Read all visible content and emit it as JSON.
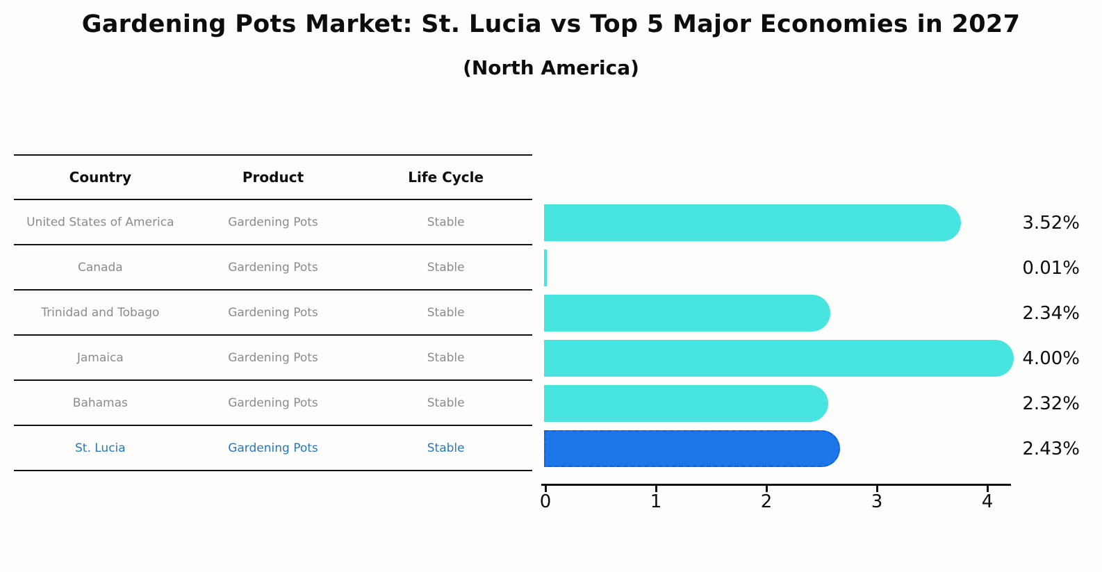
{
  "chart_data": {
    "type": "bar",
    "orientation": "horizontal",
    "title": "Gardening Pots Market: St. Lucia vs Top 5 Major Economies in 2027",
    "subtitle": "(North America)",
    "categories": [
      "United States of America",
      "Canada",
      "Trinidad and Tobago",
      "Jamaica",
      "Bahamas",
      "St. Lucia"
    ],
    "values": [
      3.52,
      0.01,
      2.34,
      4.0,
      2.32,
      2.43
    ],
    "labels": [
      "3.52%",
      "0.01%",
      "2.34%",
      "4.00%",
      "2.32%",
      "2.43%"
    ],
    "unit": "%",
    "xlim": [
      0,
      4.25
    ],
    "xticks": [
      "0",
      "1",
      "2",
      "3",
      "4"
    ],
    "grid": false,
    "legend": false,
    "bar_color": "#48E5E0",
    "highlight_color": "#1C76E8",
    "highlight_border_color": "#1261D6",
    "highlight_index": 5,
    "highlight_category": "St. Lucia"
  },
  "table": {
    "headers": [
      "Country",
      "Product",
      "Life Cycle"
    ],
    "rows": [
      {
        "country": "United States of America",
        "product": "Gardening Pots",
        "life_cycle": "Stable"
      },
      {
        "country": "Canada",
        "product": "Gardening Pots",
        "life_cycle": "Stable"
      },
      {
        "country": "Trinidad and Tobago",
        "product": "Gardening Pots",
        "life_cycle": "Stable"
      },
      {
        "country": "Jamaica",
        "product": "Gardening Pots",
        "life_cycle": "Stable"
      },
      {
        "country": "Bahamas",
        "product": "Gardening Pots",
        "life_cycle": "Stable"
      },
      {
        "country": "St. Lucia",
        "product": "Gardening Pots",
        "life_cycle": "Stable"
      }
    ],
    "text_color": "#8B8B8B",
    "highlight_text_color": "#2878B8"
  }
}
